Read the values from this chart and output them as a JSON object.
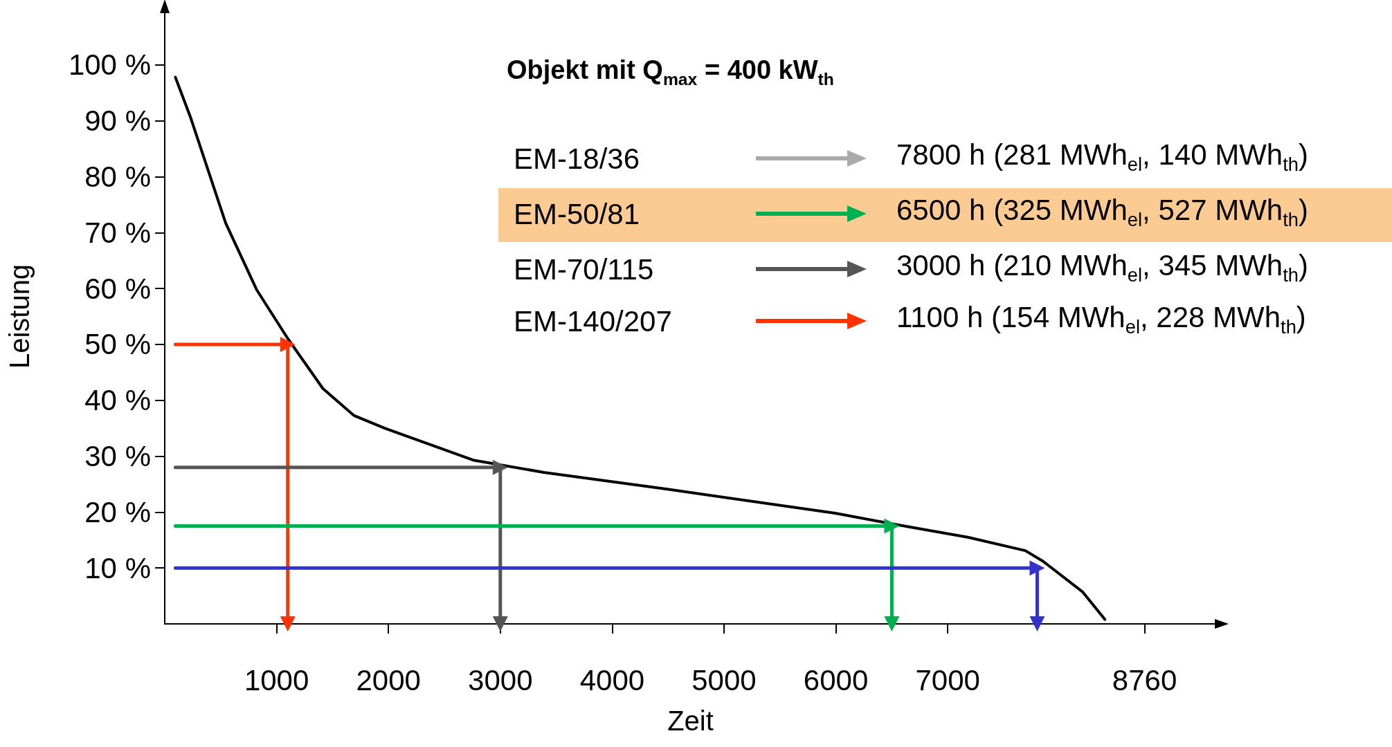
{
  "chart_data": {
    "type": "line",
    "title": "Objekt mit Q$_{max}$ = 400 kW$_{th}$",
    "xlabel": "Zeit",
    "ylabel": "Leistung",
    "annotations": [
      "EM-18/36",
      "7800 h (281 MWh$_{el}$, 140 MWh$_{th}$)",
      "EM-50/81",
      "6500 h (325 MWh$_{el}$, 527 MWh$_{th}$)",
      "EM-70/115",
      "3000 h (210 MWh$_{el}$, 345 MWh$_{th}$)",
      "EM-140/207",
      "1100 h (154 MWh$_{el}$, 228 MWh$_{th}$)"
    ],
    "xlim": [
      0,
      9400
    ],
    "ylim": [
      0,
      110
    ],
    "xticks": [
      1000,
      2000,
      3000,
      4000,
      5000,
      6000,
      7000,
      8760
    ],
    "yticks": [
      {
        "value": 10,
        "label": "10 %"
      },
      {
        "value": 20,
        "label": "20 %"
      },
      {
        "value": 30,
        "label": "30 %"
      },
      {
        "value": 40,
        "label": "40 %"
      },
      {
        "value": 50,
        "label": "50 %"
      },
      {
        "value": 60,
        "label": "60 %"
      },
      {
        "value": 70,
        "label": "70 %"
      },
      {
        "value": 80,
        "label": "80 %"
      },
      {
        "value": 90,
        "label": "90 %"
      },
      {
        "value": 100,
        "label": "100 %"
      }
    ],
    "grid": false,
    "series": [
      {
        "color": "#000000",
        "x": [
          95,
          229,
          545,
          821,
          1098,
          1414,
          1690,
          1967,
          2757,
          3389,
          4494,
          5995,
          6500,
          7180,
          7694,
          7852,
          8207,
          8405
        ],
        "values": [
          97.8,
          90.7,
          71.7,
          59.8,
          51.1,
          42.1,
          37.3,
          35.0,
          29.3,
          27.1,
          24.1,
          19.8,
          17.9,
          15.5,
          13.1,
          11.2,
          5.7,
          0.8
        ]
      },
      {
        "color": "#ff3300",
        "marker": "triangle",
        "x": [
          95,
          1100,
          1100
        ],
        "values": [
          50,
          50,
          0
        ]
      },
      {
        "color": "#555555",
        "marker": "triangle",
        "x": [
          95,
          3000,
          3000
        ],
        "values": [
          28,
          28,
          0
        ]
      },
      {
        "color": "#00b050",
        "marker": "triangle",
        "x": [
          95,
          6500,
          6500
        ],
        "values": [
          17.5,
          17.5,
          0
        ]
      },
      {
        "color": "#3333cc",
        "marker": "triangle",
        "x": [
          95,
          7800,
          7800
        ],
        "values": [
          10,
          10,
          0
        ]
      }
    ]
  }
}
